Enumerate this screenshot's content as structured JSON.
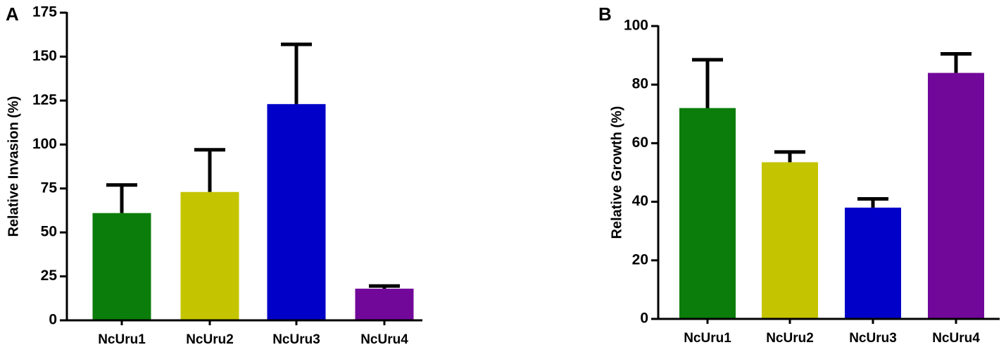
{
  "chart_data": [
    {
      "type": "bar",
      "panel_label": "A",
      "y_label": "Relative Invasion (%)",
      "categories": [
        "NcUru1",
        "NcUru2",
        "NcUru3",
        "NcUru4"
      ],
      "values": [
        61,
        73,
        123,
        18
      ],
      "errors": [
        16,
        24,
        34,
        1.5
      ],
      "colors": [
        "#0a7d0a",
        "#c4c400",
        "#0000c8",
        "#72089a"
      ],
      "ylim": [
        0,
        175
      ],
      "yticks": [
        0,
        25,
        50,
        75,
        100,
        125,
        150,
        175
      ]
    },
    {
      "type": "bar",
      "panel_label": "B",
      "y_label": "Relative Growth (%)",
      "categories": [
        "NcUru1",
        "NcUru2",
        "NcUru3",
        "NcUru4"
      ],
      "values": [
        72,
        53.5,
        38,
        84
      ],
      "errors": [
        16.5,
        3.5,
        3,
        6.5
      ],
      "colors": [
        "#0a7d0a",
        "#c4c400",
        "#0000c8",
        "#72089a"
      ],
      "ylim": [
        0,
        100
      ],
      "yticks": [
        0,
        20,
        40,
        60,
        80,
        100
      ]
    }
  ]
}
